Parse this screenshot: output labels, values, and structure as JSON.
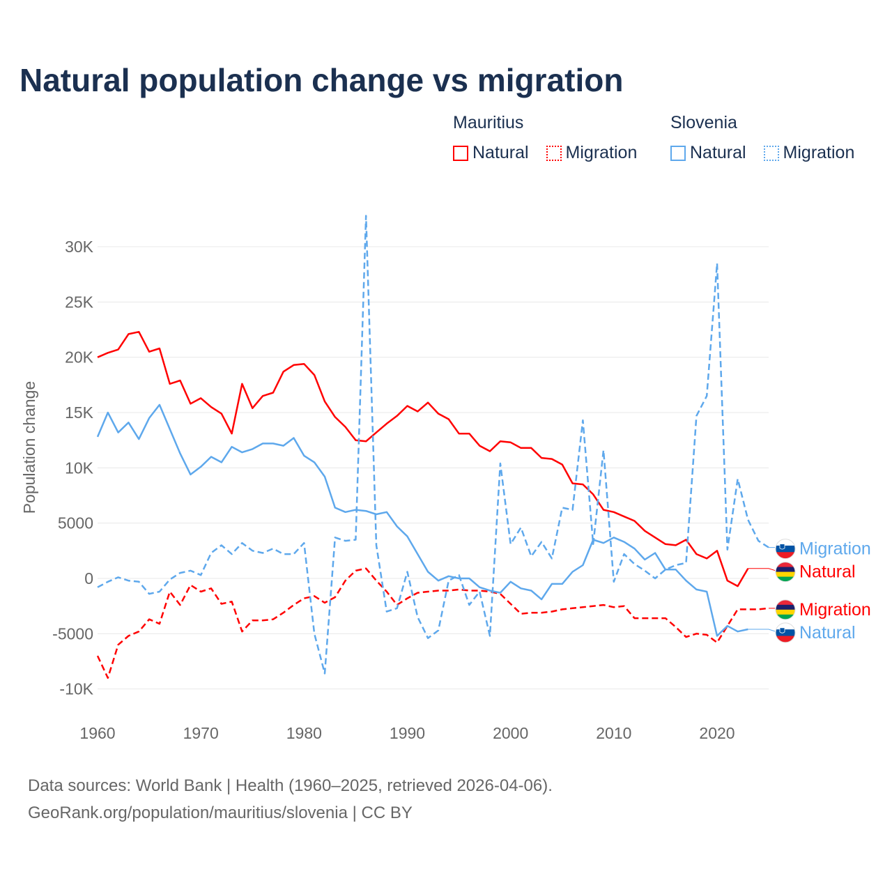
{
  "title": "Natural population change vs migration",
  "legend": [
    {
      "group": "Mauritius",
      "items": [
        {
          "label": "Natural",
          "color": "#ff0000",
          "style": "solid"
        },
        {
          "label": "Migration",
          "color": "#ff0000",
          "style": "dotted"
        }
      ]
    },
    {
      "group": "Slovenia",
      "items": [
        {
          "label": "Natural",
          "color": "#5ea8ec",
          "style": "solid"
        },
        {
          "label": "Migration",
          "color": "#5ea8ec",
          "style": "dotted"
        }
      ]
    }
  ],
  "source": {
    "line1": "Data sources: World Bank | Health (1960–2025, retrieved 2026-04-06).",
    "line2": "GeoRank.org/population/mauritius/slovenia | CC BY"
  },
  "chart_data": {
    "type": "line",
    "title": "Natural population change vs migration",
    "xlabel": "",
    "ylabel": "Population change",
    "xlim": [
      1960,
      2025
    ],
    "ylim": [
      -10000,
      32800
    ],
    "x_ticks": [
      1960,
      1970,
      1980,
      1990,
      2000,
      2010,
      2020
    ],
    "x_tick_labels": [
      "1960",
      "1970",
      "1980",
      "1990",
      "2000",
      "2010",
      "2020"
    ],
    "y_ticks": [
      -10000,
      -5000,
      0,
      5000,
      10000,
      15000,
      20000,
      25000,
      30000
    ],
    "y_tick_labels": [
      "-10K",
      "-5000",
      "0",
      "5000",
      "10K",
      "15K",
      "20K",
      "25K",
      "30K"
    ],
    "grid": true,
    "series": [
      {
        "name": "Mauritius Natural",
        "country": "Mauritius",
        "end_label": "Natural",
        "flag": "mauritius",
        "color": "#ff0000",
        "dash": false,
        "start": 1960,
        "values": [
          20000,
          20400,
          20700,
          22100,
          22300,
          20500,
          20800,
          17600,
          17900,
          15800,
          16300,
          15500,
          14900,
          13100,
          17600,
          15400,
          16500,
          16800,
          18700,
          19300,
          19400,
          18400,
          16000,
          14600,
          13700,
          12500,
          12400,
          13200,
          14000,
          14700,
          15600,
          15100,
          15900,
          14900,
          14400,
          13100,
          13100,
          12000,
          11500,
          12400,
          12300,
          11800,
          11800,
          10900,
          10800,
          10300,
          8600,
          8500,
          7600,
          6200,
          6000,
          5600,
          5200,
          4300,
          3700,
          3100,
          3000,
          3500,
          2200,
          1800,
          2500,
          -200,
          -700,
          900
        ]
      },
      {
        "name": "Mauritius Migration",
        "country": "Mauritius",
        "end_label": "Migration",
        "flag": "mauritius",
        "color": "#ff0000",
        "dash": true,
        "start": 1960,
        "values": [
          -7000,
          -9000,
          -6000,
          -5200,
          -4800,
          -3700,
          -4100,
          -1200,
          -2400,
          -600,
          -1200,
          -900,
          -2300,
          -2100,
          -4800,
          -3800,
          -3800,
          -3700,
          -3100,
          -2400,
          -1800,
          -1600,
          -2200,
          -1700,
          -200,
          700,
          900,
          -200,
          -1200,
          -2400,
          -1800,
          -1300,
          -1200,
          -1100,
          -1100,
          -1000,
          -1100,
          -1100,
          -1200,
          -1400,
          -2300,
          -3200,
          -3100,
          -3100,
          -3000,
          -2800,
          -2700,
          -2600,
          -2500,
          -2400,
          -2600,
          -2500,
          -3600,
          -3600,
          -3600,
          -3600,
          -4400,
          -5300,
          -5000,
          -5100,
          -5800,
          -4300,
          -2800,
          -2800,
          -2800,
          -2700
        ]
      },
      {
        "name": "Slovenia Natural",
        "country": "Slovenia",
        "end_label": "Natural",
        "flag": "slovenia",
        "color": "#5ea8ec",
        "dash": false,
        "start": 1960,
        "values": [
          12800,
          15000,
          13200,
          14100,
          12600,
          14500,
          15700,
          13500,
          11300,
          9400,
          10100,
          11000,
          10500,
          11900,
          11400,
          11700,
          12200,
          12200,
          12000,
          12700,
          11100,
          10500,
          9200,
          6400,
          6000,
          6200,
          6100,
          5800,
          6000,
          4700,
          3800,
          2200,
          600,
          -200,
          200,
          0,
          0,
          -800,
          -1100,
          -1300,
          -300,
          -900,
          -1100,
          -1900,
          -500,
          -500,
          600,
          1200,
          3500,
          3200,
          3700,
          3300,
          2700,
          1700,
          2300,
          800,
          800,
          -200,
          -1000,
          -1200,
          -5200,
          -4300,
          -4800,
          -4600
        ]
      },
      {
        "name": "Slovenia Migration",
        "country": "Slovenia",
        "end_label": "Migration",
        "flag": "slovenia",
        "color": "#5ea8ec",
        "dash": true,
        "start": 1960,
        "values": [
          -800,
          -300,
          100,
          -200,
          -300,
          -1400,
          -1200,
          -100,
          500,
          700,
          300,
          2300,
          3000,
          2200,
          3200,
          2500,
          2300,
          2700,
          2200,
          2200,
          3200,
          -5000,
          -8600,
          3700,
          3400,
          3500,
          32800,
          3000,
          -3000,
          -2700,
          600,
          -3500,
          -5400,
          -4700,
          -200,
          300,
          -2400,
          -1200,
          -5200,
          10400,
          3100,
          4600,
          2000,
          3300,
          1800,
          6400,
          6200,
          14300,
          3100,
          11600,
          -300,
          2200,
          1300,
          700,
          0,
          800,
          1200,
          1400,
          14700,
          16500,
          28500,
          2600,
          9000,
          5300,
          3400,
          2800
        ]
      }
    ]
  }
}
